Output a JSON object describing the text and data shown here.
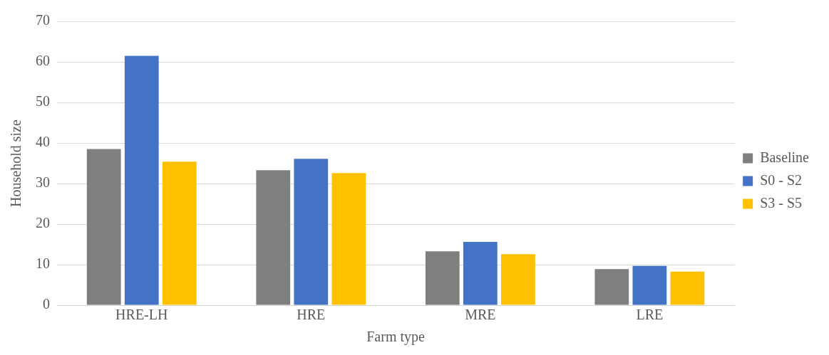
{
  "chart_data": {
    "type": "bar",
    "xlabel": "Farm type",
    "ylabel": "Household size",
    "categories": [
      "HRE-LH",
      "HRE",
      "MRE",
      "LRE"
    ],
    "series": [
      {
        "name": "Baseline",
        "color": "#7f7f7f",
        "values": [
          38.5,
          33.3,
          13.3,
          8.9
        ]
      },
      {
        "name": "S0 - S2",
        "color": "#4472c4",
        "values": [
          61.5,
          36.1,
          15.6,
          9.7
        ]
      },
      {
        "name": "S3 - S5",
        "color": "#ffc000",
        "values": [
          35.4,
          32.6,
          12.6,
          8.3
        ]
      }
    ],
    "ylim": [
      0,
      70
    ],
    "yticks": [
      0,
      10,
      20,
      30,
      40,
      50,
      60,
      70
    ],
    "grid": "y",
    "legend": "right"
  }
}
